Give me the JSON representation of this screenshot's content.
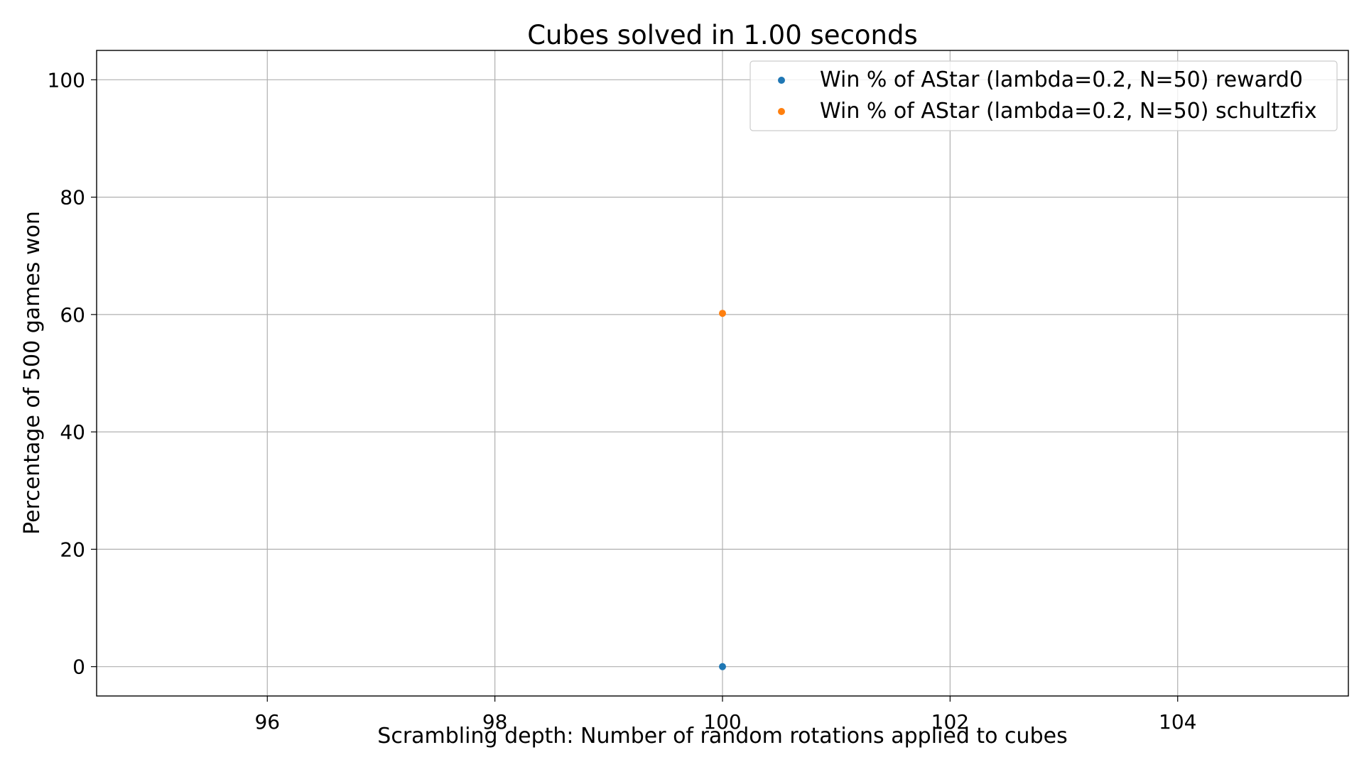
{
  "chart_data": {
    "type": "scatter",
    "title": "Cubes solved in 1.00 seconds",
    "xlabel": "Scrambling depth: Number of random rotations applied to cubes",
    "ylabel": "Percentage of 500 games won",
    "xlim": [
      94.5,
      105.5
    ],
    "ylim": [
      -5,
      105
    ],
    "xticks": [
      96,
      98,
      100,
      102,
      104
    ],
    "yticks": [
      0,
      20,
      40,
      60,
      80,
      100
    ],
    "grid": true,
    "legend_position": "top-right",
    "series": [
      {
        "name": "Win % of AStar (lambda=0.2, N=50) reward0",
        "color": "#1f77b4",
        "points": [
          [
            100,
            0
          ]
        ]
      },
      {
        "name": "Win % of AStar (lambda=0.2, N=50) schultzfix",
        "color": "#ff7f0e",
        "points": [
          [
            100,
            60.2
          ]
        ]
      }
    ]
  }
}
